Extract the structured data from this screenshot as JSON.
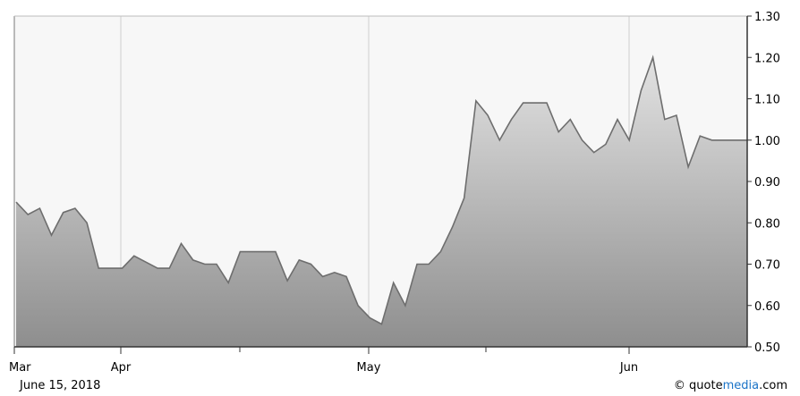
{
  "chart_data": {
    "type": "area",
    "x_tick_labels": [
      "Mar",
      "Apr",
      "May",
      "Jun"
    ],
    "y_ticks": [
      "0.50",
      "0.60",
      "0.70",
      "0.80",
      "0.90",
      "1.00",
      "1.10",
      "1.20",
      "1.30"
    ],
    "ylim": [
      0.5,
      1.3
    ],
    "grid": true,
    "y_axis_side": "right",
    "series": [
      {
        "values": [
          0.85,
          0.82,
          0.835,
          0.77,
          0.825,
          0.835,
          0.8,
          0.69,
          0.69,
          0.69,
          0.72,
          0.705,
          0.69,
          0.69,
          0.75,
          0.71,
          0.7,
          0.7,
          0.655,
          0.73,
          0.73,
          0.73,
          0.73,
          0.66,
          0.71,
          0.7,
          0.67,
          0.68,
          0.67,
          0.6,
          0.57,
          0.555,
          0.655,
          0.6,
          0.7,
          0.7,
          0.73,
          0.79,
          0.86,
          1.095,
          1.06,
          1.0,
          1.05,
          1.09,
          1.09,
          1.09,
          1.02,
          1.05,
          1.0,
          0.97,
          0.99,
          1.05,
          1.0,
          1.12,
          1.2,
          1.05,
          1.06,
          0.935,
          1.01,
          1.0,
          1.0,
          1.0,
          1.0
        ]
      }
    ],
    "colors": {
      "line": "#6e6e6e",
      "area_top": "#e2e2e2",
      "area_bottom": "#8e8e8e",
      "plot_background": "#f7f7f7",
      "grid": "#cfcfcf"
    }
  },
  "footer": {
    "date": "June 15, 2018",
    "copyright": "©",
    "brand_prefix": "quote",
    "brand_accent": "media",
    "brand_suffix": ".com"
  }
}
